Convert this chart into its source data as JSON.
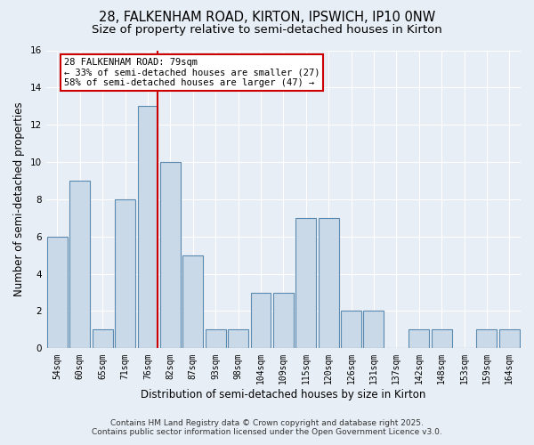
{
  "title_line1": "28, FALKENHAM ROAD, KIRTON, IPSWICH, IP10 0NW",
  "title_line2": "Size of property relative to semi-detached houses in Kirton",
  "xlabel": "Distribution of semi-detached houses by size in Kirton",
  "ylabel": "Number of semi-detached properties",
  "categories": [
    "54sqm",
    "60sqm",
    "65sqm",
    "71sqm",
    "76sqm",
    "82sqm",
    "87sqm",
    "93sqm",
    "98sqm",
    "104sqm",
    "109sqm",
    "115sqm",
    "120sqm",
    "126sqm",
    "131sqm",
    "137sqm",
    "142sqm",
    "148sqm",
    "153sqm",
    "159sqm",
    "164sqm"
  ],
  "values": [
    6,
    9,
    1,
    8,
    13,
    10,
    5,
    1,
    1,
    3,
    3,
    7,
    7,
    2,
    2,
    0,
    1,
    1,
    0,
    1,
    1
  ],
  "bar_color": "#c9d9e8",
  "bar_edge_color": "#5a8ab0",
  "highlight_index": 4,
  "ylim": [
    0,
    16
  ],
  "yticks": [
    0,
    2,
    4,
    6,
    8,
    10,
    12,
    14,
    16
  ],
  "annotation_line1": "28 FALKENHAM ROAD: 79sqm",
  "annotation_line2": "← 33% of semi-detached houses are smaller (27)",
  "annotation_line3": "58% of semi-detached houses are larger (47) →",
  "annotation_box_color": "#ffffff",
  "annotation_box_edge": "#cc0000",
  "highlight_line_color": "#cc0000",
  "footer_line1": "Contains HM Land Registry data © Crown copyright and database right 2025.",
  "footer_line2": "Contains public sector information licensed under the Open Government Licence v3.0.",
  "background_color": "#e8eef5",
  "plot_background_color": "#e8eef5",
  "grid_color": "#ffffff",
  "title_fontsize": 10.5,
  "subtitle_fontsize": 9.5,
  "tick_fontsize": 7,
  "label_fontsize": 8.5,
  "footer_fontsize": 6.5,
  "annotation_fontsize": 7.5
}
